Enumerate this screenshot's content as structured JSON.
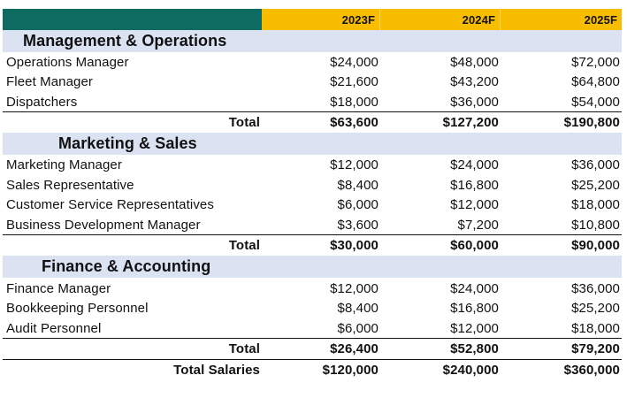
{
  "columns": [
    "",
    "2023F",
    "2024F",
    "2025F"
  ],
  "sections": [
    {
      "title": "Management & Operations",
      "items": [
        {
          "label": "Operations Manager",
          "values": [
            "$24,000",
            "$48,000",
            "$72,000"
          ]
        },
        {
          "label": "Fleet Manager",
          "values": [
            "$21,600",
            "$43,200",
            "$64,800"
          ]
        },
        {
          "label": "Dispatchers",
          "values": [
            "$18,000",
            "$36,000",
            "$54,000"
          ]
        }
      ],
      "total": {
        "label": "Total",
        "values": [
          "$63,600",
          "$127,200",
          "$190,800"
        ]
      }
    },
    {
      "title": "Marketing & Sales",
      "items": [
        {
          "label": "Marketing Manager",
          "values": [
            "$12,000",
            "$24,000",
            "$36,000"
          ]
        },
        {
          "label": "Sales Representative",
          "values": [
            "$8,400",
            "$16,800",
            "$25,200"
          ]
        },
        {
          "label": "Customer Service Representatives",
          "values": [
            "$6,000",
            "$12,000",
            "$18,000"
          ]
        },
        {
          "label": "Business Development Manager",
          "values": [
            "$3,600",
            "$7,200",
            "$10,800"
          ]
        }
      ],
      "total": {
        "label": "Total",
        "values": [
          "$30,000",
          "$60,000",
          "$90,000"
        ]
      }
    },
    {
      "title": "Finance & Accounting",
      "items": [
        {
          "label": "Finance Manager",
          "values": [
            "$12,000",
            "$24,000",
            "$36,000"
          ]
        },
        {
          "label": "Bookkeeping Personnel",
          "values": [
            "$8,400",
            "$16,800",
            "$25,200"
          ]
        },
        {
          "label": "Audit Personnel",
          "values": [
            "$6,000",
            "$12,000",
            "$18,000"
          ]
        }
      ],
      "total": {
        "label": "Total",
        "values": [
          "$26,400",
          "$52,800",
          "$79,200"
        ]
      }
    }
  ],
  "grand_total": {
    "label": "Total Salaries",
    "values": [
      "$120,000",
      "$240,000",
      "$360,000"
    ]
  },
  "colors": {
    "header_left": "#0e6b62",
    "header_years": "#f9bd00",
    "section_band": "#dbe3f3"
  }
}
